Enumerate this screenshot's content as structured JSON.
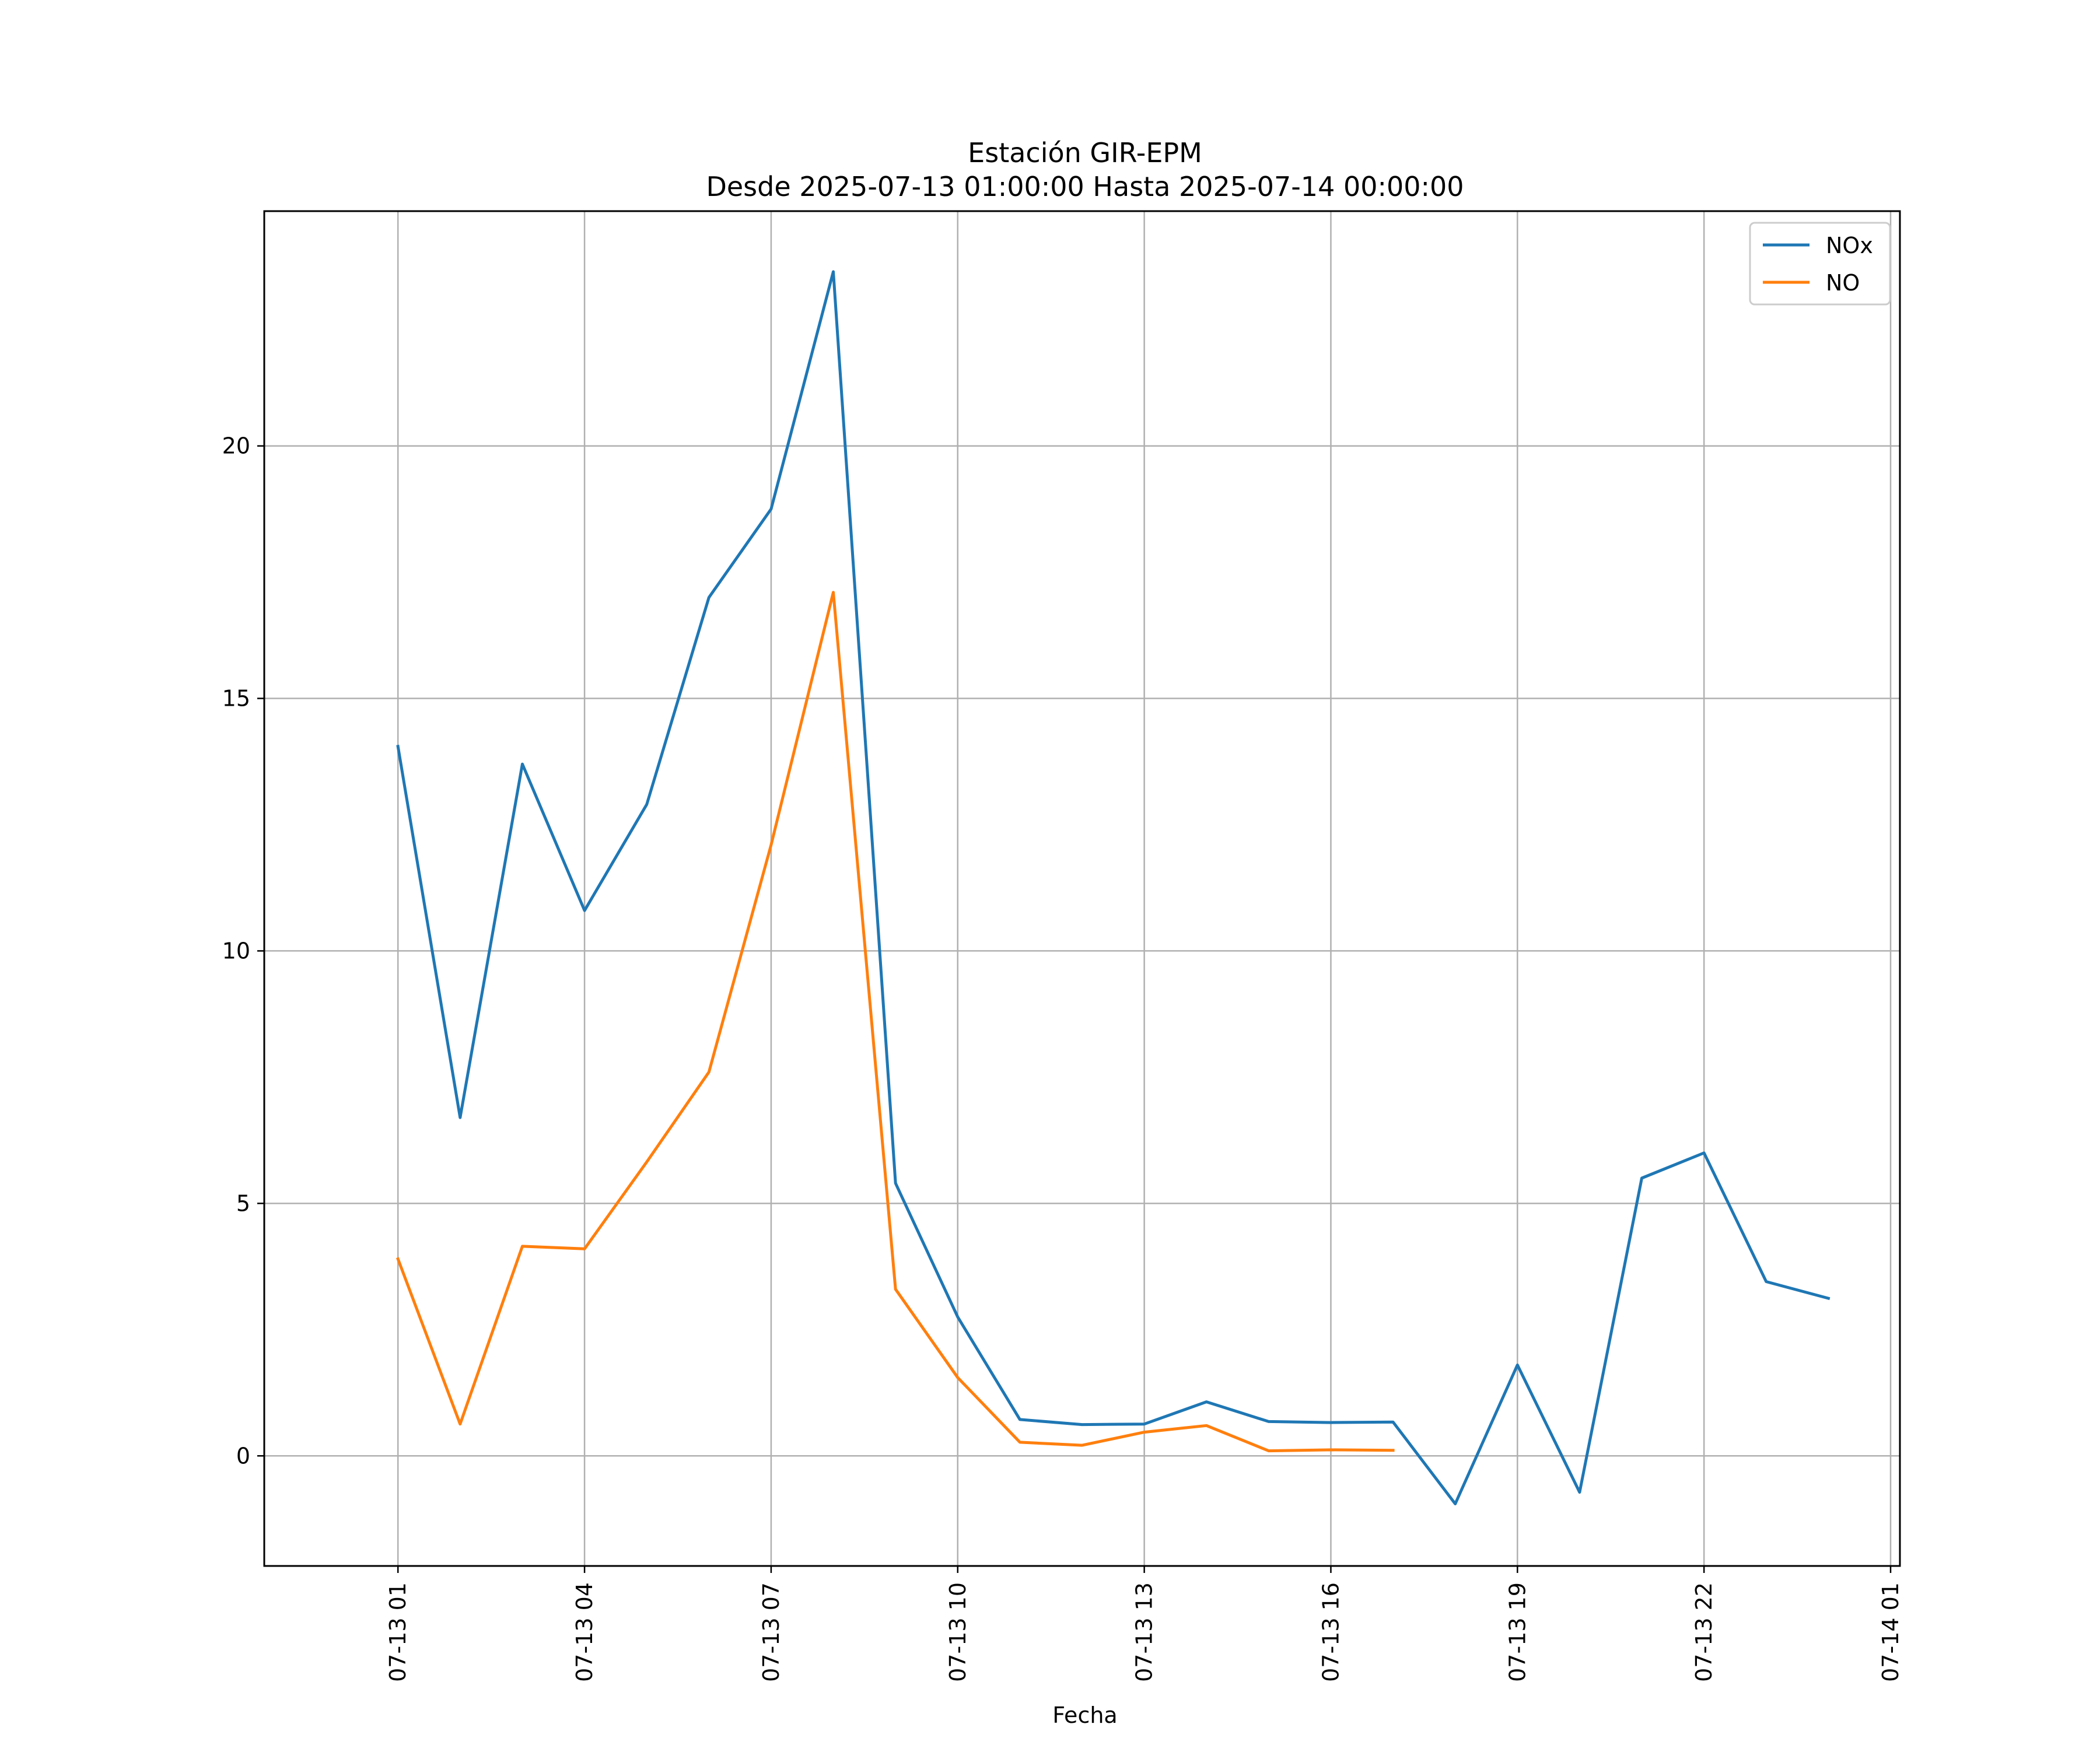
{
  "chart_data": {
    "type": "line",
    "title": "Estación GIR-EPM",
    "subtitle": "Desde 2025-07-13 01:00:00 Hasta 2025-07-14 00:00:00",
    "xlabel": "Fecha",
    "ylabel": "",
    "x": [
      "2025-07-13 01:00",
      "2025-07-13 02:00",
      "2025-07-13 03:00",
      "2025-07-13 04:00",
      "2025-07-13 05:00",
      "2025-07-13 06:00",
      "2025-07-13 07:00",
      "2025-07-13 08:00",
      "2025-07-13 09:00",
      "2025-07-13 10:00",
      "2025-07-13 11:00",
      "2025-07-13 12:00",
      "2025-07-13 13:00",
      "2025-07-13 14:00",
      "2025-07-13 15:00",
      "2025-07-13 16:00",
      "2025-07-13 17:00",
      "2025-07-13 18:00",
      "2025-07-13 19:00",
      "2025-07-13 20:00",
      "2025-07-13 21:00",
      "2025-07-13 22:00",
      "2025-07-13 23:00",
      "2025-07-14 00:00"
    ],
    "series": [
      {
        "name": "NOx",
        "color": "#1f77b4",
        "values": [
          14.05,
          6.7,
          13.7,
          10.8,
          12.9,
          17.0,
          18.75,
          23.45,
          5.4,
          2.75,
          0.72,
          0.62,
          0.63,
          1.07,
          0.68,
          0.66,
          0.67,
          -0.95,
          1.8,
          -0.72,
          5.5,
          6.0,
          3.45,
          3.12
        ]
      },
      {
        "name": "NO",
        "color": "#ff7f0e",
        "values": [
          3.9,
          0.63,
          4.15,
          4.1,
          5.82,
          7.6,
          12.1,
          17.1,
          3.3,
          1.55,
          0.27,
          0.21,
          0.47,
          0.6,
          0.1,
          0.12,
          0.11,
          null,
          null,
          null,
          null,
          null,
          null,
          null
        ]
      }
    ],
    "x_ticks": [
      "07-13 01",
      "07-13 04",
      "07-13 07",
      "07-13 10",
      "07-13 13",
      "07-13 16",
      "07-13 19",
      "07-13 22",
      "07-14 01"
    ],
    "y_ticks": [
      "0",
      "5",
      "10",
      "15",
      "20"
    ],
    "y_tick_values": [
      0,
      5,
      10,
      15,
      20
    ],
    "xlim": [
      "2025-07-12 22:51",
      "2025-07-14 01:09"
    ],
    "ylim": [
      -2.18,
      24.65
    ],
    "grid": true,
    "legend_position": "top-right"
  }
}
